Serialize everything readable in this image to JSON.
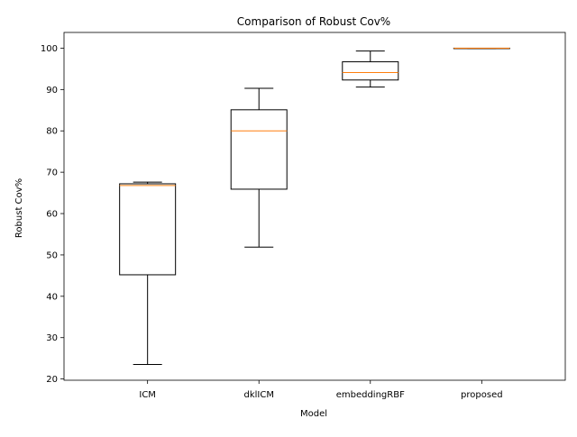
{
  "chart_data": {
    "type": "boxplot",
    "title": "Comparison of Robust Cov%",
    "xlabel": "Model",
    "ylabel": "Robust Cov%",
    "categories": [
      "ICM",
      "dklICM",
      "embeddingRBF",
      "proposed"
    ],
    "boxes": [
      {
        "category": "ICM",
        "whisker_low": 23.5,
        "q1": 45.2,
        "median": 66.8,
        "q3": 67.2,
        "whisker_high": 67.6
      },
      {
        "category": "dklICM",
        "whisker_low": 51.9,
        "q1": 65.9,
        "median": 80.0,
        "q3": 85.1,
        "whisker_high": 90.3
      },
      {
        "category": "embeddingRBF",
        "whisker_low": 90.6,
        "q1": 92.3,
        "median": 94.1,
        "q3": 96.7,
        "whisker_high": 99.3
      },
      {
        "category": "proposed",
        "whisker_low": 99.9,
        "q1": 99.9,
        "median": 100.0,
        "q3": 100.0,
        "whisker_high": 100.0
      }
    ],
    "yticks": [
      20,
      30,
      40,
      50,
      60,
      70,
      80,
      90,
      100
    ],
    "ylim": [
      19.7,
      103.8
    ],
    "grid": false,
    "colors": {
      "box": "#000000",
      "median": "#ff7f0e"
    }
  }
}
